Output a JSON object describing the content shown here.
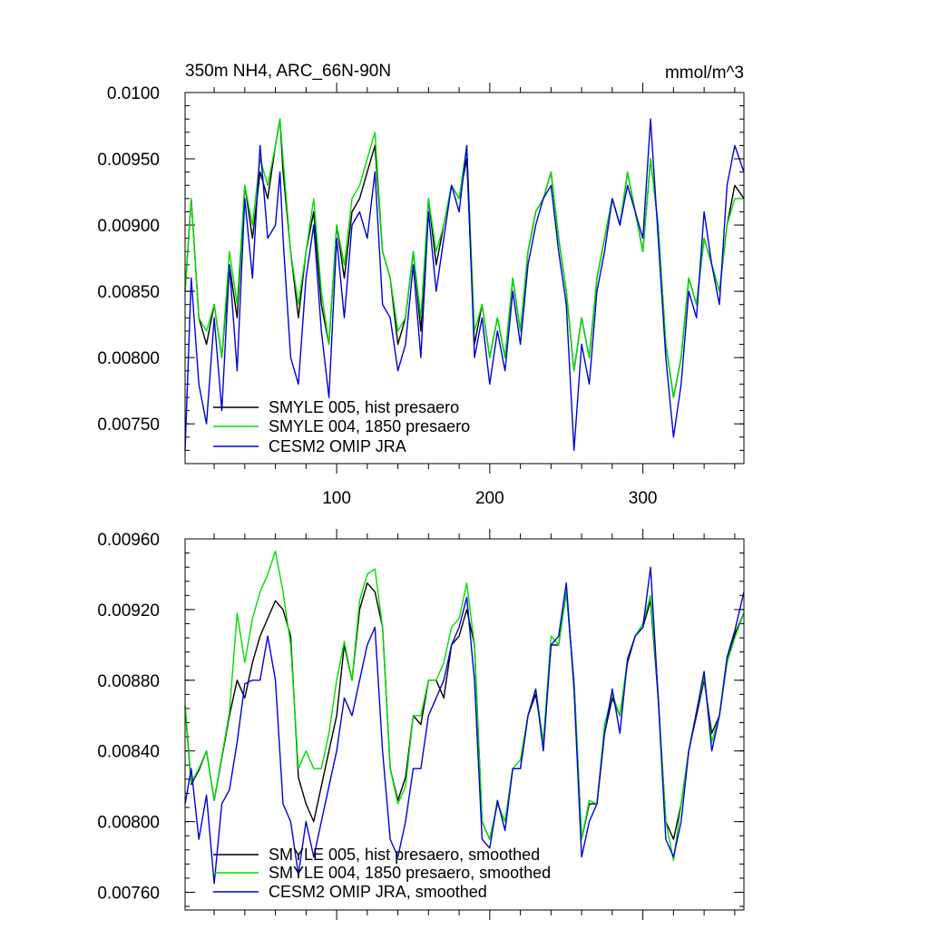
{
  "figure": {
    "title": "350m NH4, ARC_66N-90N",
    "units": "mmol/m^3"
  },
  "colors": {
    "series_hist": "#000000",
    "series_1850": "#00dd00",
    "series_jra": "#0000dd",
    "axis": "#000000",
    "background": "#ffffff"
  },
  "chart_data": [
    {
      "type": "line",
      "title": "350m NH4, ARC_66N-90N",
      "right_label": "mmol/m^3",
      "xlabel": "",
      "ylabel": "",
      "xlim": [
        1,
        366
      ],
      "ylim": [
        0.0072,
        0.01
      ],
      "yticks": [
        0.0075,
        0.008,
        0.0085,
        0.009,
        0.0095,
        0.01
      ],
      "ytick_labels": [
        "0.00750",
        "0.00800",
        "0.00850",
        "0.00900",
        "0.00950",
        "0.0100"
      ],
      "xticks": [
        100,
        200,
        300
      ],
      "xtick_labels": [
        "100",
        "200",
        "300"
      ],
      "grid": false,
      "legend_position": "bottom-left",
      "legend": [
        "SMYLE 005, hist presaero",
        "SMYLE 004, 1850 presaero",
        "CESM2 OMIP JRA"
      ],
      "series": [
        {
          "name": "SMYLE 005, hist presaero",
          "color": "#000000",
          "x": [
            1,
            5,
            10,
            15,
            20,
            25,
            30,
            35,
            40,
            45,
            50,
            55,
            60,
            63,
            65,
            70,
            75,
            80,
            85,
            90,
            95,
            100,
            105,
            110,
            115,
            120,
            125,
            130,
            135,
            140,
            145,
            150,
            155,
            160,
            165,
            170,
            175,
            180,
            185,
            190,
            195,
            200,
            205,
            210,
            215,
            220,
            225,
            230,
            235,
            240,
            245,
            250,
            255,
            260,
            265,
            270,
            275,
            280,
            285,
            290,
            295,
            300,
            305,
            310,
            315,
            320,
            325,
            330,
            335,
            340,
            345,
            350,
            355,
            360,
            366
          ],
          "values": [
            0.0085,
            0.0092,
            0.0083,
            0.0081,
            0.0084,
            0.008,
            0.0087,
            0.0083,
            0.0093,
            0.0089,
            0.0094,
            0.0092,
            0.0096,
            0.0098,
            0.0094,
            0.0088,
            0.0083,
            0.0088,
            0.0091,
            0.0084,
            0.0081,
            0.009,
            0.0086,
            0.0091,
            0.0092,
            0.0094,
            0.0096,
            0.0088,
            0.0086,
            0.0081,
            0.0083,
            0.0088,
            0.0082,
            0.0092,
            0.0087,
            0.009,
            0.0093,
            0.0092,
            0.0095,
            0.0081,
            0.0084,
            0.008,
            0.0083,
            0.008,
            0.0086,
            0.0082,
            0.0088,
            0.0091,
            0.0092,
            0.0094,
            0.0089,
            0.0085,
            0.0079,
            0.0083,
            0.008,
            0.0086,
            0.0089,
            0.0092,
            0.009,
            0.0094,
            0.0091,
            0.0088,
            0.0095,
            0.009,
            0.0081,
            0.0077,
            0.008,
            0.0086,
            0.0084,
            0.0089,
            0.0087,
            0.0085,
            0.009,
            0.0093,
            0.0092
          ]
        },
        {
          "name": "SMYLE 004, 1850 presaero",
          "color": "#00dd00",
          "x": [
            1,
            5,
            10,
            15,
            20,
            25,
            30,
            35,
            40,
            45,
            50,
            55,
            60,
            63,
            65,
            70,
            75,
            80,
            85,
            90,
            95,
            100,
            105,
            110,
            115,
            120,
            125,
            130,
            135,
            140,
            145,
            150,
            155,
            160,
            165,
            170,
            175,
            180,
            185,
            190,
            195,
            200,
            205,
            210,
            215,
            220,
            225,
            230,
            235,
            240,
            245,
            250,
            255,
            260,
            265,
            270,
            275,
            280,
            285,
            290,
            295,
            300,
            305,
            310,
            315,
            320,
            325,
            330,
            335,
            340,
            345,
            350,
            355,
            360,
            366
          ],
          "values": [
            0.0085,
            0.0092,
            0.0083,
            0.0082,
            0.0084,
            0.008,
            0.0088,
            0.0084,
            0.0093,
            0.009,
            0.0095,
            0.0093,
            0.0096,
            0.0098,
            0.0095,
            0.0088,
            0.0084,
            0.0088,
            0.0092,
            0.0085,
            0.0081,
            0.009,
            0.0087,
            0.0092,
            0.0093,
            0.0095,
            0.0097,
            0.0088,
            0.0086,
            0.0082,
            0.0083,
            0.0088,
            0.0083,
            0.0092,
            0.0088,
            0.009,
            0.0093,
            0.0092,
            0.0096,
            0.0082,
            0.0084,
            0.008,
            0.0083,
            0.008,
            0.0086,
            0.0082,
            0.0088,
            0.0091,
            0.0092,
            0.0094,
            0.0089,
            0.0085,
            0.0079,
            0.0083,
            0.008,
            0.0086,
            0.0089,
            0.0092,
            0.009,
            0.0094,
            0.0091,
            0.0088,
            0.0095,
            0.009,
            0.0081,
            0.0077,
            0.008,
            0.0086,
            0.0084,
            0.0089,
            0.0087,
            0.0085,
            0.009,
            0.0092,
            0.0092
          ]
        },
        {
          "name": "CESM2 OMIP JRA",
          "color": "#0000dd",
          "x": [
            1,
            5,
            10,
            15,
            20,
            25,
            30,
            35,
            40,
            45,
            50,
            55,
            60,
            63,
            65,
            70,
            75,
            80,
            85,
            90,
            95,
            100,
            105,
            110,
            115,
            120,
            125,
            130,
            135,
            140,
            145,
            150,
            155,
            160,
            165,
            170,
            175,
            180,
            185,
            190,
            195,
            200,
            205,
            210,
            215,
            220,
            225,
            230,
            235,
            240,
            245,
            250,
            255,
            260,
            265,
            270,
            275,
            280,
            285,
            290,
            295,
            300,
            305,
            310,
            315,
            320,
            325,
            330,
            335,
            340,
            345,
            350,
            355,
            360,
            366
          ],
          "values": [
            0.0073,
            0.0086,
            0.0078,
            0.0075,
            0.0083,
            0.0076,
            0.0087,
            0.0079,
            0.0092,
            0.0086,
            0.0096,
            0.0089,
            0.009,
            0.0094,
            0.0089,
            0.008,
            0.0078,
            0.0086,
            0.009,
            0.0082,
            0.0077,
            0.0089,
            0.0083,
            0.009,
            0.0091,
            0.0089,
            0.0094,
            0.0084,
            0.0083,
            0.0079,
            0.0081,
            0.0087,
            0.008,
            0.0091,
            0.0085,
            0.0089,
            0.0093,
            0.0091,
            0.0096,
            0.008,
            0.0083,
            0.0078,
            0.0082,
            0.0079,
            0.0085,
            0.0081,
            0.0087,
            0.009,
            0.0092,
            0.0093,
            0.0088,
            0.0084,
            0.0073,
            0.0081,
            0.0078,
            0.0085,
            0.0088,
            0.0092,
            0.009,
            0.0093,
            0.0091,
            0.0089,
            0.0098,
            0.0089,
            0.008,
            0.0074,
            0.0078,
            0.0085,
            0.0083,
            0.0091,
            0.0087,
            0.0084,
            0.0093,
            0.0096,
            0.0094
          ]
        }
      ]
    },
    {
      "type": "line",
      "title": "",
      "xlabel": "",
      "ylabel": "",
      "xlim": [
        1,
        366
      ],
      "ylim": [
        0.0075,
        0.0096
      ],
      "yticks": [
        0.0076,
        0.008,
        0.0084,
        0.0088,
        0.0092,
        0.0096
      ],
      "ytick_labels": [
        "0.00760",
        "0.00800",
        "0.00840",
        "0.00880",
        "0.00920",
        "0.00960"
      ],
      "xticks": [
        100,
        200,
        300
      ],
      "xtick_labels": [],
      "grid": false,
      "legend_position": "bottom-left",
      "legend": [
        "SMYLE 005, hist presaero, smoothed",
        "SMYLE 004, 1850 presaero, smoothed",
        "CESM2 OMIP JRA, smoothed"
      ],
      "series": [
        {
          "name": "SMYLE 005, hist presaero, smoothed",
          "color": "#000000",
          "x": [
            1,
            5,
            10,
            15,
            20,
            25,
            30,
            35,
            40,
            45,
            50,
            55,
            60,
            65,
            70,
            75,
            80,
            85,
            90,
            95,
            100,
            105,
            110,
            115,
            120,
            125,
            130,
            135,
            140,
            145,
            150,
            155,
            160,
            165,
            170,
            175,
            180,
            185,
            190,
            195,
            200,
            205,
            210,
            215,
            220,
            225,
            230,
            235,
            240,
            245,
            250,
            255,
            260,
            265,
            270,
            275,
            280,
            285,
            290,
            295,
            300,
            305,
            310,
            315,
            320,
            325,
            330,
            335,
            340,
            345,
            350,
            355,
            360,
            366
          ],
          "values": [
            0.00865,
            0.00821,
            0.00829,
            0.0084,
            0.00812,
            0.00836,
            0.0086,
            0.0088,
            0.0087,
            0.0089,
            0.00905,
            0.00915,
            0.00925,
            0.0092,
            0.00905,
            0.00825,
            0.0081,
            0.008,
            0.0082,
            0.0084,
            0.0086,
            0.009,
            0.0088,
            0.0092,
            0.00935,
            0.0093,
            0.0091,
            0.0083,
            0.00812,
            0.00825,
            0.0086,
            0.00855,
            0.0088,
            0.0088,
            0.0087,
            0.009,
            0.00905,
            0.0092,
            0.009,
            0.008,
            0.0079,
            0.0081,
            0.008,
            0.0083,
            0.0083,
            0.0086,
            0.00872,
            0.00845,
            0.009,
            0.009,
            0.0093,
            0.0088,
            0.0079,
            0.0081,
            0.0081,
            0.0085,
            0.0087,
            0.0086,
            0.0089,
            0.00905,
            0.0091,
            0.00925,
            0.0087,
            0.008,
            0.0079,
            0.0081,
            0.0084,
            0.0086,
            0.0088,
            0.0085,
            0.0086,
            0.0089,
            0.00906,
            0.00918
          ]
        },
        {
          "name": "SMYLE 004, 1850 presaero, smoothed",
          "color": "#00dd00",
          "x": [
            1,
            5,
            10,
            15,
            20,
            25,
            30,
            35,
            40,
            45,
            50,
            55,
            60,
            65,
            70,
            75,
            80,
            85,
            90,
            95,
            100,
            105,
            110,
            115,
            120,
            125,
            130,
            135,
            140,
            145,
            150,
            155,
            160,
            165,
            170,
            175,
            180,
            185,
            190,
            195,
            200,
            205,
            210,
            215,
            220,
            225,
            230,
            235,
            240,
            245,
            250,
            255,
            260,
            265,
            270,
            275,
            280,
            285,
            290,
            295,
            300,
            305,
            310,
            315,
            320,
            325,
            330,
            335,
            340,
            345,
            350,
            355,
            360,
            366
          ],
          "values": [
            0.00866,
            0.00822,
            0.0083,
            0.0084,
            0.00812,
            0.00837,
            0.00862,
            0.00918,
            0.0089,
            0.00915,
            0.0093,
            0.0094,
            0.00953,
            0.0093,
            0.009,
            0.0083,
            0.0084,
            0.0083,
            0.0083,
            0.0085,
            0.0088,
            0.00902,
            0.0088,
            0.00925,
            0.0094,
            0.00943,
            0.0091,
            0.0083,
            0.0081,
            0.0082,
            0.0086,
            0.0086,
            0.0088,
            0.0088,
            0.0089,
            0.0091,
            0.00915,
            0.00935,
            0.009,
            0.008,
            0.0079,
            0.0081,
            0.008,
            0.0083,
            0.00835,
            0.0086,
            0.00875,
            0.00845,
            0.00905,
            0.009,
            0.0093,
            0.0088,
            0.0079,
            0.00812,
            0.0081,
            0.00855,
            0.00872,
            0.0086,
            0.00892,
            0.00905,
            0.00912,
            0.00928,
            0.00872,
            0.008,
            0.00778,
            0.0081,
            0.0084,
            0.00862,
            0.00882,
            0.00845,
            0.0086,
            0.0089,
            0.00904,
            0.00918
          ]
        },
        {
          "name": "CESM2 OMIP JRA, smoothed",
          "color": "#0000dd",
          "x": [
            1,
            5,
            10,
            15,
            20,
            25,
            30,
            35,
            40,
            45,
            50,
            55,
            60,
            65,
            70,
            75,
            80,
            85,
            90,
            95,
            100,
            105,
            110,
            115,
            120,
            125,
            130,
            135,
            140,
            145,
            150,
            155,
            160,
            165,
            170,
            175,
            180,
            185,
            190,
            195,
            200,
            205,
            210,
            215,
            220,
            225,
            230,
            235,
            240,
            245,
            250,
            255,
            260,
            265,
            270,
            275,
            280,
            285,
            290,
            295,
            300,
            305,
            310,
            315,
            320,
            325,
            330,
            335,
            340,
            345,
            350,
            355,
            360,
            366
          ],
          "values": [
            0.0081,
            0.0083,
            0.0079,
            0.00815,
            0.00765,
            0.0081,
            0.00818,
            0.00845,
            0.00878,
            0.0088,
            0.0088,
            0.00905,
            0.0088,
            0.0081,
            0.008,
            0.0077,
            0.008,
            0.0078,
            0.008,
            0.0082,
            0.0084,
            0.0087,
            0.0086,
            0.0088,
            0.009,
            0.0091,
            0.0084,
            0.0079,
            0.0078,
            0.008,
            0.0083,
            0.0083,
            0.0086,
            0.0087,
            0.0088,
            0.009,
            0.0091,
            0.00927,
            0.0088,
            0.0079,
            0.00785,
            0.00812,
            0.00795,
            0.0083,
            0.0083,
            0.0086,
            0.00875,
            0.0084,
            0.009,
            0.00905,
            0.00935,
            0.00875,
            0.0078,
            0.008,
            0.0081,
            0.0085,
            0.00875,
            0.0085,
            0.00892,
            0.00905,
            0.0091,
            0.00944,
            0.0087,
            0.0079,
            0.0078,
            0.008,
            0.0084,
            0.00862,
            0.00885,
            0.0084,
            0.0086,
            0.00893,
            0.00908,
            0.0093
          ]
        }
      ]
    }
  ]
}
